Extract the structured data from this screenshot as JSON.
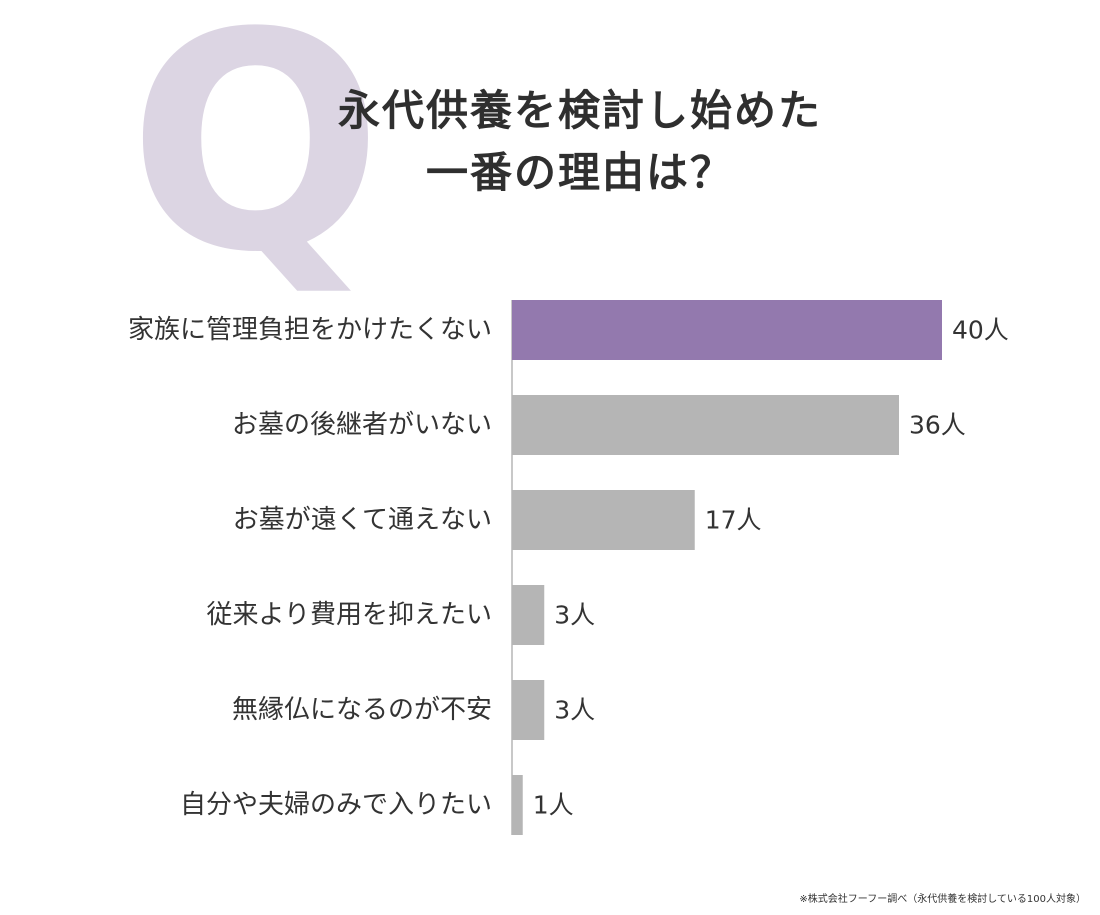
{
  "question_mark": "Q",
  "title_lines": [
    "永代供養を検討し始めた",
    "一番の理由は？"
  ],
  "chart_data": {
    "type": "bar",
    "orientation": "horizontal",
    "categories": [
      "家族に管理負担をかけたくない",
      "お墓の後継者がいない",
      "お墓が遠くて通えない",
      "従来より費用を抑えたい",
      "無縁仏になるのが不安",
      "自分や夫婦のみで入りたい"
    ],
    "values": [
      40,
      36,
      17,
      3,
      3,
      1
    ],
    "value_labels": [
      "40人",
      "36人",
      "17人",
      "3人",
      "3人",
      "1人"
    ],
    "unit": "人",
    "xlim": [
      0,
      40
    ],
    "highlight_index": 0,
    "colors": {
      "highlight": "#9379ae",
      "default": "#b5b5b5",
      "axis": "#b5b5b5",
      "text": "#333333"
    },
    "grid": false
  },
  "footnote": "※株式会社フーフー調べ（永代供養を検討している100人対象）"
}
